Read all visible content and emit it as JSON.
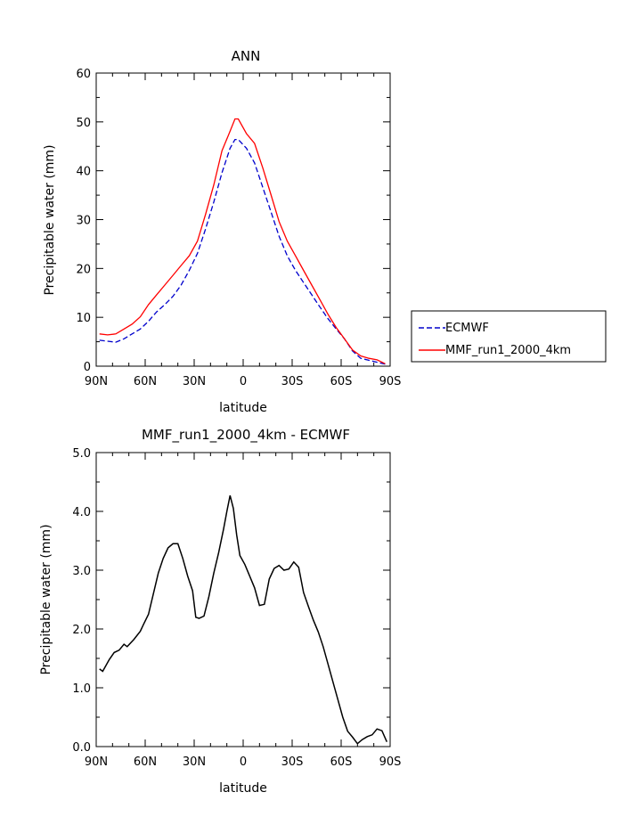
{
  "chart_data": [
    {
      "type": "line",
      "title": "ANN",
      "xlabel": "latitude",
      "ylabel": "Precipitable water (mm)",
      "xlim": [
        -90,
        90
      ],
      "ylim": [
        0,
        60
      ],
      "x_ticks": [
        -90,
        -60,
        -30,
        0,
        30,
        60,
        90
      ],
      "x_tick_labels": [
        "90N",
        "60N",
        "30N",
        "0",
        "30S",
        "60S",
        "90S"
      ],
      "y_ticks": [
        0,
        10,
        20,
        30,
        40,
        50,
        60
      ],
      "y_tick_labels": [
        "0",
        "10",
        "20",
        "30",
        "40",
        "50",
        "60"
      ],
      "legend": {
        "placement": "right-outside"
      },
      "series": [
        {
          "name": "ECMWF",
          "color": "#0000cc",
          "dash": true,
          "x": [
            -88,
            -83,
            -78,
            -73,
            -68,
            -63,
            -58,
            -53,
            -48,
            -43,
            -38,
            -33,
            -28,
            -23,
            -18,
            -13,
            -8,
            -5,
            -3,
            2,
            7,
            12,
            17,
            22,
            27,
            32,
            37,
            42,
            47,
            52,
            57,
            62,
            67,
            72,
            77,
            82,
            87
          ],
          "y": [
            5.3,
            5.1,
            4.9,
            5.6,
            6.6,
            7.6,
            9.2,
            11.1,
            12.6,
            14.3,
            16.6,
            19.6,
            23.1,
            28.1,
            33.6,
            39.6,
            44.6,
            46.4,
            46.4,
            44.6,
            41.6,
            36.6,
            31.6,
            26.6,
            22.6,
            19.6,
            17.1,
            14.6,
            12.1,
            9.7,
            7.6,
            5.6,
            3.1,
            1.6,
            1.2,
            0.8,
            0.4
          ]
        },
        {
          "name": "MMF_run1_2000_4km",
          "color": "#ff0000",
          "dash": false,
          "x": [
            -88,
            -83,
            -78,
            -73,
            -68,
            -63,
            -58,
            -53,
            -48,
            -43,
            -38,
            -33,
            -28,
            -23,
            -18,
            -13,
            -8,
            -5,
            -3,
            2,
            7,
            12,
            17,
            22,
            27,
            32,
            37,
            42,
            47,
            52,
            57,
            62,
            67,
            72,
            77,
            82,
            87
          ],
          "y": [
            6.6,
            6.4,
            6.6,
            7.6,
            8.6,
            10.1,
            12.6,
            14.6,
            16.6,
            18.6,
            20.6,
            22.6,
            25.6,
            31.1,
            37.1,
            44.1,
            48.1,
            50.6,
            50.6,
            47.6,
            45.6,
            40.6,
            35.1,
            29.6,
            25.6,
            22.6,
            19.6,
            16.6,
            13.6,
            10.6,
            7.9,
            5.6,
            3.3,
            2.1,
            1.6,
            1.3,
            0.5
          ]
        }
      ]
    },
    {
      "type": "line",
      "title": "MMF_run1_2000_4km - ECMWF",
      "xlabel": "latitude",
      "ylabel": "Precipitable water (mm)",
      "xlim": [
        -90,
        90
      ],
      "ylim": [
        0,
        5
      ],
      "x_ticks": [
        -90,
        -60,
        -30,
        0,
        30,
        60,
        90
      ],
      "x_tick_labels": [
        "90N",
        "60N",
        "30N",
        "0",
        "30S",
        "60S",
        "90S"
      ],
      "y_ticks": [
        0,
        1,
        2,
        3,
        4,
        5
      ],
      "y_tick_labels": [
        "0.0",
        "1.0",
        "2.0",
        "3.0",
        "4.0",
        "5.0"
      ],
      "series": [
        {
          "color": "#000000",
          "dash": false,
          "x": [
            -88,
            -86,
            -82,
            -79,
            -76,
            -73,
            -71,
            -67,
            -63,
            -61,
            -58,
            -55,
            -52,
            -49,
            -46,
            -43,
            -40,
            -37,
            -34,
            -31,
            -29,
            -27,
            -24,
            -21,
            -18,
            -15,
            -12,
            -10,
            -8,
            -6,
            -4,
            -2,
            1,
            4,
            7,
            10,
            13,
            16,
            19,
            22,
            25,
            28,
            31,
            34,
            37,
            40,
            43,
            46,
            49,
            52,
            55,
            58,
            61,
            64,
            67,
            70,
            73,
            76,
            79,
            82,
            85,
            88
          ],
          "y": [
            1.32,
            1.28,
            1.48,
            1.6,
            1.64,
            1.74,
            1.7,
            1.82,
            1.96,
            2.08,
            2.25,
            2.6,
            2.95,
            3.2,
            3.38,
            3.45,
            3.45,
            3.2,
            2.9,
            2.65,
            2.2,
            2.18,
            2.22,
            2.55,
            2.95,
            3.3,
            3.7,
            4.0,
            4.27,
            4.05,
            3.6,
            3.25,
            3.1,
            2.9,
            2.7,
            2.4,
            2.42,
            2.85,
            3.03,
            3.08,
            3.0,
            3.02,
            3.14,
            3.05,
            2.62,
            2.38,
            2.15,
            1.95,
            1.7,
            1.4,
            1.1,
            0.8,
            0.5,
            0.26,
            0.16,
            0.05,
            0.12,
            0.17,
            0.2,
            0.3,
            0.27,
            0.08
          ]
        }
      ]
    }
  ]
}
